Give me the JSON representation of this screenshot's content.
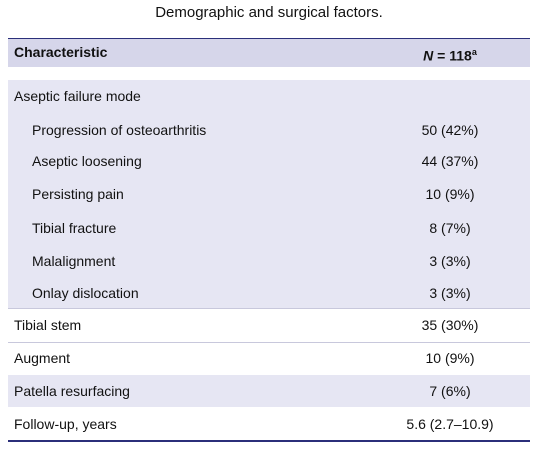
{
  "table": {
    "title": "Demographic and surgical factors.",
    "header": {
      "characteristic": "Characteristic",
      "n_symbol": "N",
      "n_value": " = 118",
      "footnote": "a"
    },
    "group": {
      "label": "Aseptic failure mode",
      "rows": [
        [
          "Progression of osteoarthritis",
          "50 (42%)"
        ],
        [
          "Aseptic loosening",
          "44 (37%)"
        ],
        [
          "Persisting pain",
          "10 (9%)"
        ],
        [
          "Tibial fracture",
          "8 (7%)"
        ],
        [
          "Malalignment",
          "3 (3%)"
        ],
        [
          "Onlay dislocation",
          "3 (3%)"
        ]
      ]
    },
    "rows": [
      [
        "Tibial stem",
        "35 (30%)"
      ],
      [
        "Augment",
        "10 (9%)"
      ],
      [
        "Patella resurfacing",
        "7 (6%)"
      ],
      [
        "Follow-up, years",
        "5.6 (2.7–10.9)"
      ]
    ]
  }
}
